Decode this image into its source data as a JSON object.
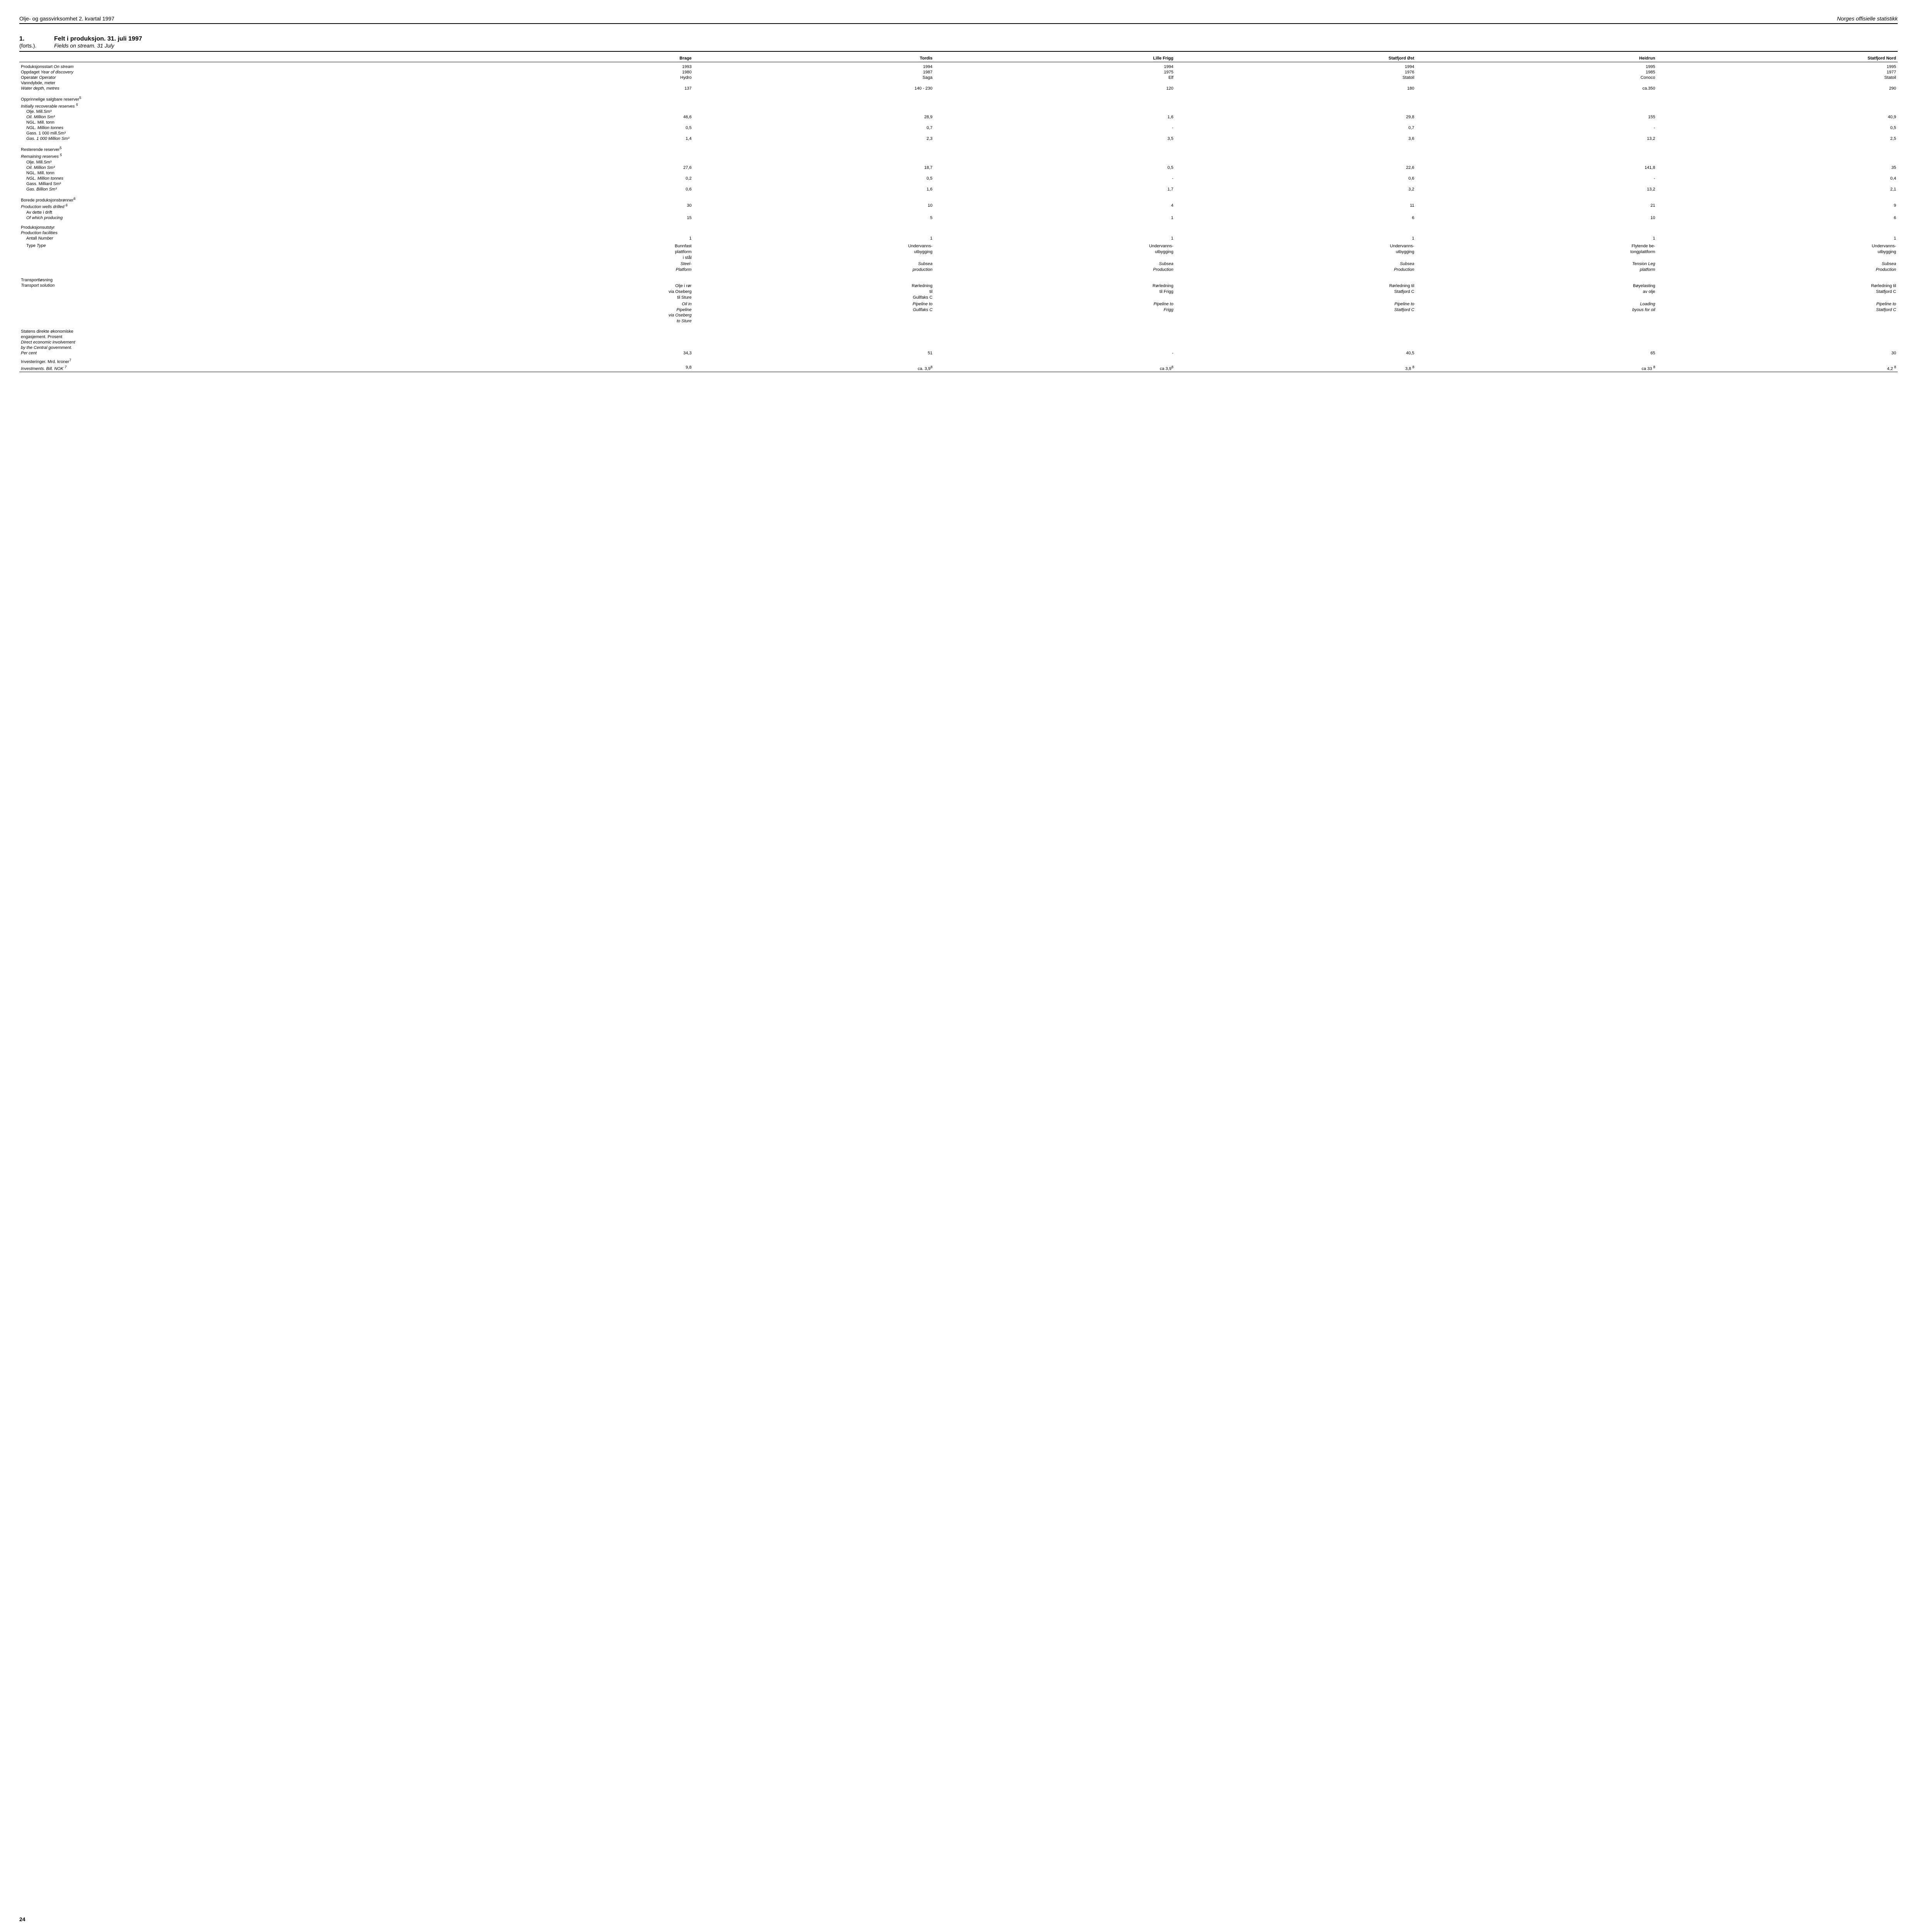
{
  "header": {
    "left": "Olje- og gassvirksomhet 2. kvartal 1997",
    "right": "Norges offisielle statistikk"
  },
  "title": {
    "num": "1.",
    "main": "Felt i produksjon. 31. juli 1997",
    "cont": "(forts.).",
    "sub": "Fields on stream. 31 July"
  },
  "columns": [
    "Brage",
    "Tordis",
    "Lille Frigg",
    "Statfjord Øst",
    "Heidrun",
    "Statfjord Nord"
  ],
  "rows": {
    "onstream": {
      "label_no": "Produksjonsstart",
      "label_en": "On stream",
      "v": [
        "1993",
        "1994",
        "1994",
        "1994",
        "1995",
        "1995"
      ]
    },
    "discovery": {
      "label_no": "Oppdaget",
      "label_en": "Year of discovery",
      "v": [
        "1980",
        "1987",
        "1975",
        "1976",
        "1985",
        "1977"
      ]
    },
    "operator": {
      "label_no": "Operatør",
      "label_en": "Operator",
      "v": [
        "Hydro",
        "Saga",
        "Elf",
        "Statoil",
        "Conoco",
        "Statoil"
      ]
    },
    "depth_no": "Vanndybde, meter",
    "depth_en": "Water depth, metres",
    "depth_v": [
      "137",
      "140 - 230",
      "120",
      "180",
      "ca.350",
      "290"
    ],
    "reserves_init_no": "Opprinnelige salgbare reserver",
    "reserves_init_en": "Initially recoverable reserves",
    "sup5": "5",
    "oil_unit_no": "Olje. Mill.Sm³",
    "oil_unit_en": "Oil. Million Sm³",
    "oil_init": [
      "46,6",
      "28,9",
      "1,6",
      "29,8",
      "155",
      "40,9"
    ],
    "ngl_unit_no": "NGL. Mill. tonn",
    "ngl_unit_en": "NGL. Million tonnes",
    "ngl_init": [
      "0,5",
      "0,7",
      "-",
      "0,7",
      "-",
      "0,5"
    ],
    "gas_unit_no": "Gass. 1 000 mill.Sm³",
    "gas_unit_en": "Gas. 1 000 Million Sm³",
    "gas_init": [
      "1,4",
      "2,3",
      "3,5",
      "3,6",
      "13,2",
      "2,5"
    ],
    "reserves_rem_no": "Resterende reserver",
    "reserves_rem_en": "Remaining reserves",
    "oil_rem": [
      "27,6",
      "18,7",
      "0,5",
      "22,6",
      "141,8",
      "35"
    ],
    "ngl_rem": [
      "0,2",
      "0,5",
      "-",
      "0,6",
      "-",
      "0,4"
    ],
    "gas_rem_unit_no": "Gass. Milliard Sm³",
    "gas_rem_unit_en": "Gas. Billion Sm³",
    "gas_rem": [
      "0,6",
      "1,6",
      "1,7",
      "3,2",
      "13,2",
      "2,1"
    ],
    "wells_no": "Borede produksjonsbrønner",
    "wells_en": "Production wells drilled",
    "sup6": "6",
    "wells_v": [
      "30",
      "10",
      "4",
      "11",
      "21",
      "9"
    ],
    "wells_prod_no": "Av dette i drift",
    "wells_prod_en": "Of which producing",
    "wells_prod_v": [
      "15",
      "5",
      "1",
      "6",
      "10",
      "6"
    ],
    "facilities_no": "Produksjonsutstyr",
    "facilities_en": "Production facilities",
    "facilities_num_no": "Antall",
    "facilities_num_en": "Number",
    "facilities_num_v": [
      "1",
      "1",
      "1",
      "1",
      "1",
      "1"
    ],
    "type_label_no": "Type",
    "type_label_en": "Type",
    "type_v_no": [
      "Bunnfast\nplattform\ni stål",
      "Undervanns-\nutbygging",
      "Undervanns-\nutbygging",
      "Undervanns-\nutbygging",
      "Flytende be-\ntongplattform",
      "Undervanns-\nutbygging"
    ],
    "type_v_en": [
      "Steel-\nPlatform",
      "Subsea\nproduction",
      "Subsea\nProduction",
      "Subsea\nProduction",
      "Tension Leg\nplatform",
      "Subsea\nProduction"
    ],
    "transport_no": "Transportløsning",
    "transport_en": "Transport solution",
    "transport_v_no": [
      "Olje i rør\nvia Oseberg\ntil Sture",
      "Rørledning\ntil\nGullfaks C",
      "Rørledning\ntil Frigg",
      "Rørledning til\nStatfjord C",
      "Bøyelasting\nav olje",
      "Rørledning til\nStatfjord C"
    ],
    "transport_v_en": [
      "Oil in\nPipeline\nvia Oseberg\nto Sture",
      "Pipeline to\nGullfaks C",
      "Pipeline to\nFrigg",
      "Pipeline to\nStatfjord C",
      "Loading\nbyous for oil",
      "Pipeline to\nStatfjord C"
    ],
    "gov_no1": "Statens direkte økonomiske",
    "gov_no2": "engasjement. Prosent",
    "gov_en1": "Direct economic involvement",
    "gov_en2": "by the Central government.",
    "gov_en3": "Per cent",
    "gov_v": [
      "34,3",
      "51",
      "-",
      "40,5",
      "65",
      "30"
    ],
    "invest_no": "Investeringer. Mrd. kroner",
    "invest_en": "Investments. Bill. NOK",
    "sup7": "7",
    "sup8": "8",
    "invest_v": [
      "9,8",
      "ca. 3,9",
      "ca 3,9",
      "3,8",
      "ca 33",
      "4,2"
    ]
  },
  "page_number": "24"
}
